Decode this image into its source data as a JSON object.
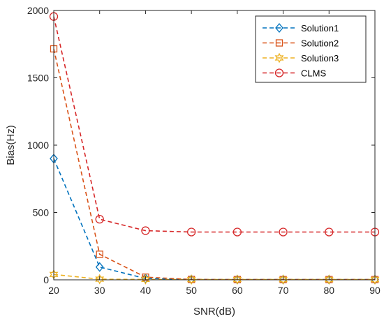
{
  "chart_data": {
    "type": "line",
    "title": "",
    "xlabel": "SNR(dB)",
    "ylabel": "Bias(Hz)",
    "xlim": [
      20,
      90
    ],
    "ylim": [
      0,
      2000
    ],
    "xticks": [
      20,
      30,
      40,
      50,
      60,
      70,
      80,
      90
    ],
    "yticks": [
      0,
      500,
      1000,
      1500,
      2000
    ],
    "grid": false,
    "legend_position": "top-right",
    "x": [
      20,
      30,
      40,
      50,
      60,
      70,
      80,
      90
    ],
    "series": [
      {
        "name": "Solution1",
        "color": "#0072BD",
        "marker": "diamond",
        "values": [
          900,
          95,
          10,
          3,
          2,
          2,
          2,
          2
        ]
      },
      {
        "name": "Solution2",
        "color": "#D95319",
        "marker": "square",
        "values": [
          1715,
          190,
          20,
          3,
          2,
          2,
          2,
          2
        ]
      },
      {
        "name": "Solution3",
        "color": "#EDB120",
        "marker": "hexagram",
        "values": [
          40,
          5,
          3,
          2,
          2,
          2,
          2,
          2
        ]
      },
      {
        "name": "CLMS",
        "color": "#D62728",
        "marker": "circle",
        "values": [
          1955,
          450,
          365,
          355,
          355,
          355,
          355,
          355
        ]
      }
    ]
  }
}
